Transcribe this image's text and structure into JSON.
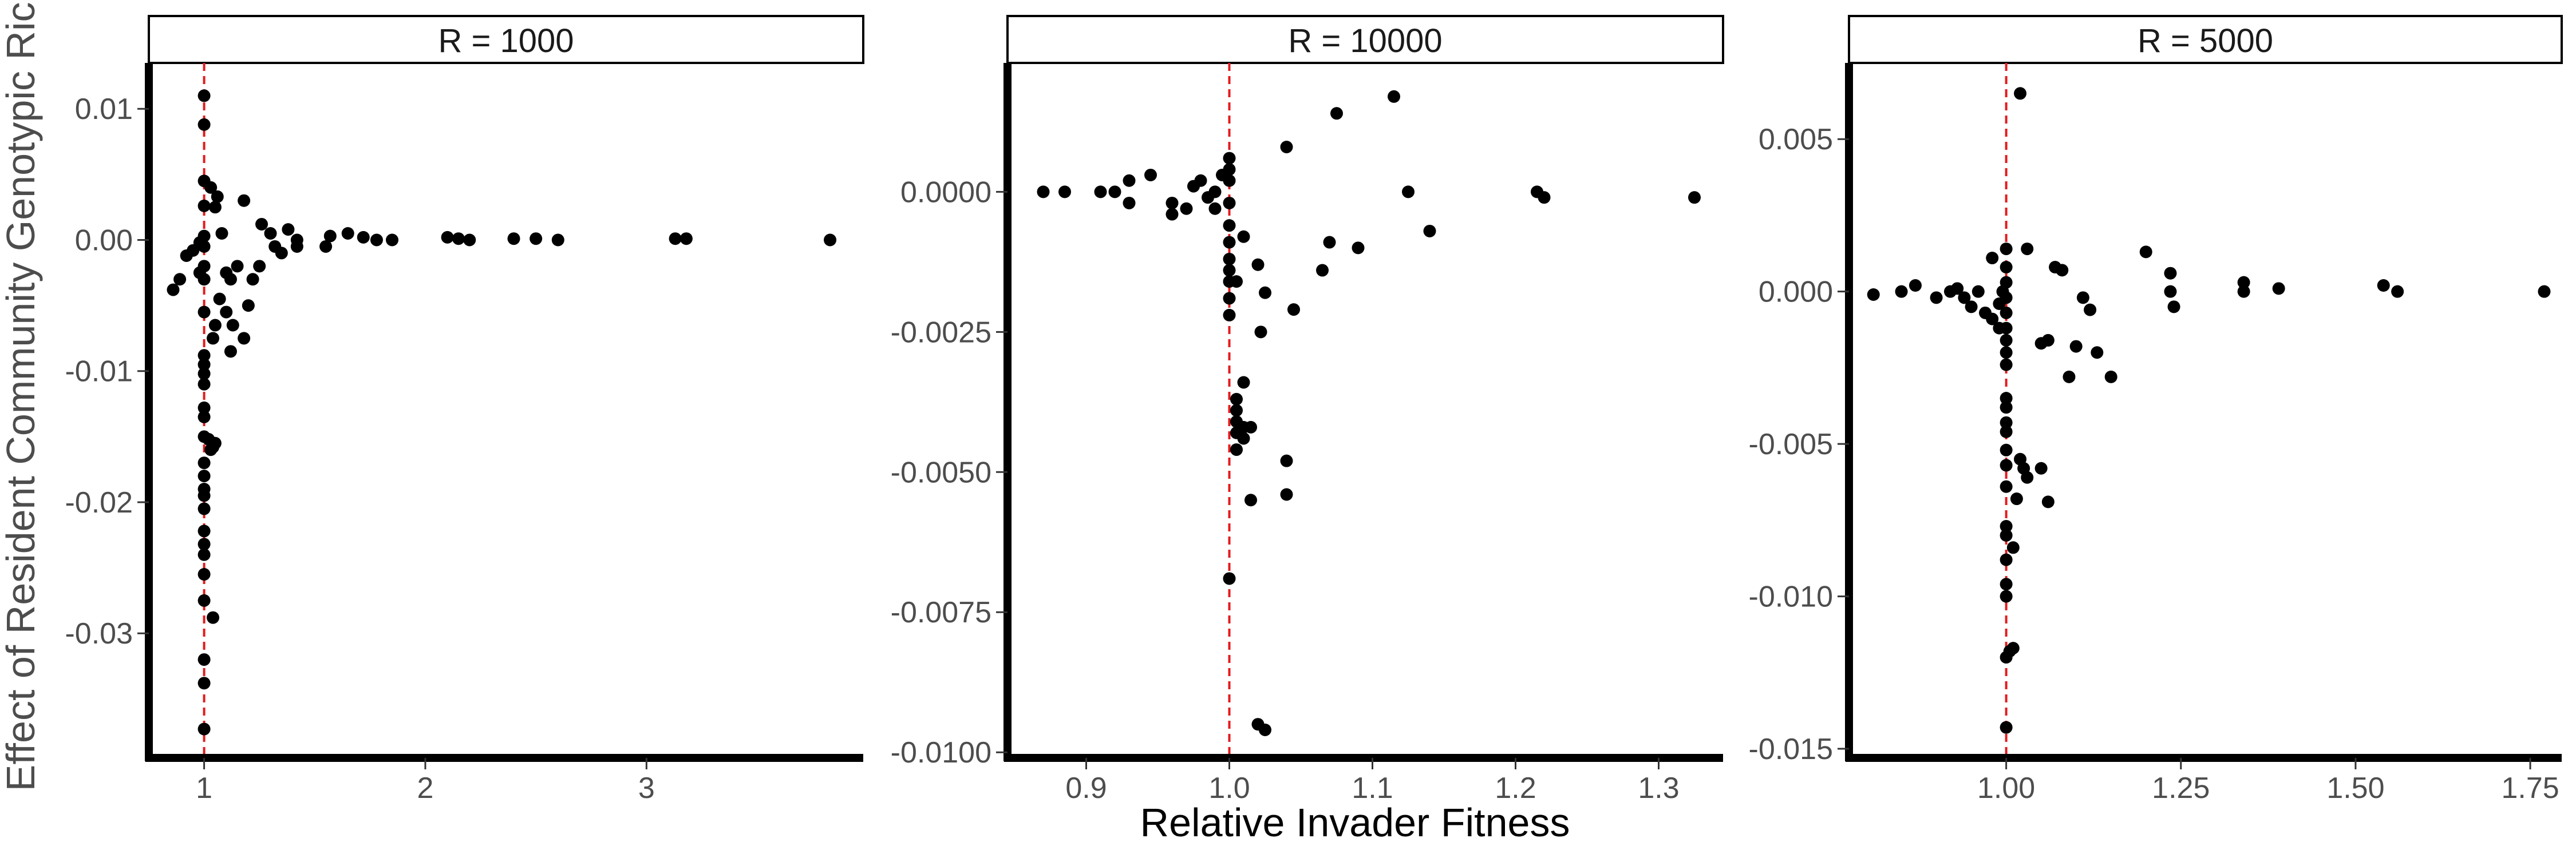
{
  "chart_data": {
    "type": "scatter",
    "xlabel": "Relative Invader Fitness",
    "ylabel": "Effect of Resident Community Genotypic Richness",
    "reference_line": {
      "x": 1,
      "color": "#e41a1c",
      "style": "dashed"
    },
    "point_color": "#000000",
    "panels": [
      {
        "title": "R = 1000",
        "xlim": [
          0.75,
          3.98
        ],
        "ylim": [
          -0.0395,
          0.0135
        ],
        "xticks": [
          1,
          2,
          3
        ],
        "xtick_labels": [
          "1",
          "2",
          "3"
        ],
        "yticks": [
          0.01,
          0.0,
          -0.01,
          -0.02,
          -0.03
        ],
        "ytick_labels": [
          "0.01",
          "0.00",
          "-0.01",
          "-0.02",
          "-0.03"
        ],
        "points": [
          [
            1.0,
            0.011
          ],
          [
            1.0,
            0.0088
          ],
          [
            1.0,
            0.0045
          ],
          [
            1.0,
            0.0026
          ],
          [
            1.0,
            0.0003
          ],
          [
            1.0,
            -0.0005
          ],
          [
            1.0,
            -0.002
          ],
          [
            1.0,
            -0.003
          ],
          [
            1.0,
            -0.0055
          ],
          [
            1.0,
            -0.0088
          ],
          [
            1.0,
            -0.0095
          ],
          [
            1.0,
            -0.0102
          ],
          [
            1.0,
            -0.011
          ],
          [
            1.0,
            -0.0128
          ],
          [
            1.0,
            -0.0135
          ],
          [
            1.0,
            -0.015
          ],
          [
            1.0,
            -0.017
          ],
          [
            1.0,
            -0.018
          ],
          [
            1.0,
            -0.019
          ],
          [
            1.0,
            -0.0195
          ],
          [
            1.0,
            -0.0205
          ],
          [
            1.0,
            -0.0222
          ],
          [
            1.0,
            -0.0232
          ],
          [
            1.0,
            -0.024
          ],
          [
            1.0,
            -0.0255
          ],
          [
            1.0,
            -0.0275
          ],
          [
            1.0,
            -0.032
          ],
          [
            1.0,
            -0.0338
          ],
          [
            1.0,
            -0.0373
          ],
          [
            1.02,
            -0.0152
          ],
          [
            1.03,
            -0.016
          ],
          [
            1.04,
            -0.0158
          ],
          [
            1.05,
            -0.0155
          ],
          [
            1.04,
            -0.0288
          ],
          [
            1.03,
            0.004
          ],
          [
            1.06,
            0.0033
          ],
          [
            1.05,
            0.0025
          ],
          [
            1.08,
            0.0005
          ],
          [
            1.1,
            -0.0025
          ],
          [
            1.12,
            -0.003
          ],
          [
            1.07,
            -0.0045
          ],
          [
            1.1,
            -0.0055
          ],
          [
            1.13,
            -0.0065
          ],
          [
            1.05,
            -0.0065
          ],
          [
            1.04,
            -0.0075
          ],
          [
            1.12,
            -0.0085
          ],
          [
            1.18,
            -0.0075
          ],
          [
            1.2,
            -0.005
          ],
          [
            1.22,
            -0.003
          ],
          [
            1.25,
            -0.002
          ],
          [
            1.18,
            0.003
          ],
          [
            1.26,
            0.0012
          ],
          [
            1.3,
            0.0005
          ],
          [
            1.32,
            -0.0005
          ],
          [
            1.35,
            -0.001
          ],
          [
            1.38,
            0.0008
          ],
          [
            1.42,
            0.0
          ],
          [
            1.42,
            -0.0005
          ],
          [
            1.15,
            -0.002
          ],
          [
            0.98,
            -0.0002
          ],
          [
            0.95,
            -0.0008
          ],
          [
            0.92,
            -0.0012
          ],
          [
            0.89,
            -0.003
          ],
          [
            0.86,
            -0.0038
          ],
          [
            0.98,
            -0.0025
          ],
          [
            1.55,
            -0.0005
          ],
          [
            1.57,
            0.0003
          ],
          [
            1.65,
            0.0005
          ],
          [
            1.72,
            0.0002
          ],
          [
            1.78,
            0.0
          ],
          [
            1.85,
            0.0
          ],
          [
            2.1,
            0.0002
          ],
          [
            2.15,
            0.0001
          ],
          [
            2.2,
            0.0
          ],
          [
            2.4,
            0.0001
          ],
          [
            2.5,
            0.0001
          ],
          [
            2.6,
            0.0
          ],
          [
            3.13,
            0.0001
          ],
          [
            3.18,
            0.0001
          ],
          [
            3.83,
            0.0
          ]
        ]
      },
      {
        "title": "R = 10000",
        "xlim": [
          0.845,
          1.345
        ],
        "ylim": [
          -0.0101,
          0.0023
        ],
        "xticks": [
          0.9,
          1.0,
          1.1,
          1.2,
          1.3
        ],
        "xtick_labels": [
          "0.9",
          "1.0",
          "1.1",
          "1.2",
          "1.3"
        ],
        "yticks": [
          0.0,
          -0.0025,
          -0.005,
          -0.0075,
          -0.01
        ],
        "ytick_labels": [
          "0.0000",
          "-0.0025",
          "-0.0050",
          "-0.0075",
          "-0.0100"
        ],
        "points": [
          [
            0.87,
            0.0
          ],
          [
            0.885,
            0.0
          ],
          [
            0.91,
            0.0
          ],
          [
            0.92,
            0.0
          ],
          [
            0.93,
            0.0002
          ],
          [
            0.93,
            -0.0002
          ],
          [
            0.945,
            0.0003
          ],
          [
            0.96,
            -0.0002
          ],
          [
            0.97,
            -0.0003
          ],
          [
            0.975,
            0.0001
          ],
          [
            0.98,
            0.0002
          ],
          [
            0.985,
            -0.0001
          ],
          [
            0.99,
            0.0
          ],
          [
            0.99,
            -0.0003
          ],
          [
            0.995,
            0.0003
          ],
          [
            1.0,
            0.0006
          ],
          [
            1.0,
            0.0004
          ],
          [
            1.0,
            0.0002
          ],
          [
            1.0,
            -0.0002
          ],
          [
            1.0,
            -0.0006
          ],
          [
            1.0,
            -0.0009
          ],
          [
            1.0,
            -0.0012
          ],
          [
            1.0,
            -0.0014
          ],
          [
            1.0,
            -0.0016
          ],
          [
            1.0,
            -0.0019
          ],
          [
            1.0,
            -0.0022
          ],
          [
            1.0,
            -0.0069
          ],
          [
            0.96,
            -0.0004
          ],
          [
            1.005,
            -0.0016
          ],
          [
            1.01,
            -0.0008
          ],
          [
            1.005,
            -0.0037
          ],
          [
            1.005,
            -0.0039
          ],
          [
            1.005,
            -0.0041
          ],
          [
            1.005,
            -0.0043
          ],
          [
            1.005,
            -0.0046
          ],
          [
            1.01,
            -0.0034
          ],
          [
            1.01,
            -0.0042
          ],
          [
            1.01,
            -0.0044
          ],
          [
            1.015,
            -0.0042
          ],
          [
            1.015,
            -0.0055
          ],
          [
            1.02,
            -0.0095
          ],
          [
            1.025,
            -0.0096
          ],
          [
            1.02,
            -0.0013
          ],
          [
            1.025,
            -0.0018
          ],
          [
            1.022,
            -0.0025
          ],
          [
            1.045,
            -0.0021
          ],
          [
            1.04,
            -0.0048
          ],
          [
            1.04,
            -0.0054
          ],
          [
            1.04,
            0.0008
          ],
          [
            1.065,
            -0.0014
          ],
          [
            1.07,
            -0.0009
          ],
          [
            1.075,
            0.0014
          ],
          [
            1.09,
            -0.001
          ],
          [
            1.115,
            0.0017
          ],
          [
            1.125,
            0.0
          ],
          [
            1.14,
            -0.0007
          ],
          [
            1.215,
            0.0
          ],
          [
            1.22,
            -0.0001
          ],
          [
            1.325,
            -0.0001
          ]
        ]
      },
      {
        "title": "R = 5000",
        "xlim": [
          0.775,
          1.795
        ],
        "ylim": [
          -0.0153,
          0.0075
        ],
        "xticks": [
          1.0,
          1.25,
          1.5,
          1.75
        ],
        "xtick_labels": [
          "1.00",
          "1.25",
          "1.50",
          "1.75"
        ],
        "yticks": [
          0.005,
          0.0,
          -0.005,
          -0.01,
          -0.015
        ],
        "ytick_labels": [
          "0.005",
          "0.000",
          "-0.005",
          "-0.010",
          "-0.015"
        ],
        "points": [
          [
            0.81,
            -0.0001
          ],
          [
            0.85,
            0.0
          ],
          [
            0.87,
            0.0002
          ],
          [
            0.9,
            -0.0002
          ],
          [
            0.92,
            0.0
          ],
          [
            0.93,
            0.0001
          ],
          [
            0.94,
            -0.0002
          ],
          [
            0.95,
            -0.0005
          ],
          [
            0.96,
            0.0
          ],
          [
            0.97,
            -0.0007
          ],
          [
            0.98,
            -0.0009
          ],
          [
            0.98,
            0.0011
          ],
          [
            0.99,
            -0.0012
          ],
          [
            0.99,
            -0.0004
          ],
          [
            0.995,
            0.0
          ],
          [
            1.0,
            0.0014
          ],
          [
            1.0,
            0.0008
          ],
          [
            1.0,
            0.0003
          ],
          [
            1.0,
            -0.0002
          ],
          [
            1.0,
            -0.0007
          ],
          [
            1.0,
            -0.0012
          ],
          [
            1.0,
            -0.0016
          ],
          [
            1.0,
            -0.002
          ],
          [
            1.0,
            -0.0024
          ],
          [
            1.0,
            -0.0035
          ],
          [
            1.0,
            -0.0038
          ],
          [
            1.0,
            -0.0043
          ],
          [
            1.0,
            -0.0046
          ],
          [
            1.0,
            -0.0052
          ],
          [
            1.0,
            -0.0057
          ],
          [
            1.0,
            -0.0064
          ],
          [
            1.0,
            -0.0077
          ],
          [
            1.0,
            -0.008
          ],
          [
            1.0,
            -0.0088
          ],
          [
            1.0,
            -0.0096
          ],
          [
            1.0,
            -0.01
          ],
          [
            1.0,
            -0.012
          ],
          [
            1.0,
            -0.0143
          ],
          [
            1.005,
            -0.0118
          ],
          [
            1.01,
            -0.0117
          ],
          [
            1.01,
            -0.0084
          ],
          [
            1.015,
            -0.0068
          ],
          [
            1.02,
            -0.0055
          ],
          [
            1.025,
            -0.0058
          ],
          [
            1.03,
            -0.0061
          ],
          [
            1.05,
            -0.0058
          ],
          [
            1.06,
            -0.0069
          ],
          [
            1.02,
            0.0065
          ],
          [
            1.03,
            0.0014
          ],
          [
            1.05,
            -0.0017
          ],
          [
            1.06,
            -0.0016
          ],
          [
            1.07,
            0.0008
          ],
          [
            1.08,
            0.0007
          ],
          [
            1.09,
            -0.0028
          ],
          [
            1.1,
            -0.0018
          ],
          [
            1.11,
            -0.0002
          ],
          [
            1.12,
            -0.0006
          ],
          [
            1.13,
            -0.002
          ],
          [
            1.15,
            -0.0028
          ],
          [
            1.2,
            0.0013
          ],
          [
            1.235,
            0.0006
          ],
          [
            1.235,
            0.0
          ],
          [
            1.24,
            -0.0005
          ],
          [
            1.34,
            0.0003
          ],
          [
            1.34,
            0.0
          ],
          [
            1.39,
            0.0001
          ],
          [
            1.54,
            0.0002
          ],
          [
            1.56,
            0.0
          ],
          [
            1.77,
            0.0
          ]
        ]
      }
    ]
  }
}
